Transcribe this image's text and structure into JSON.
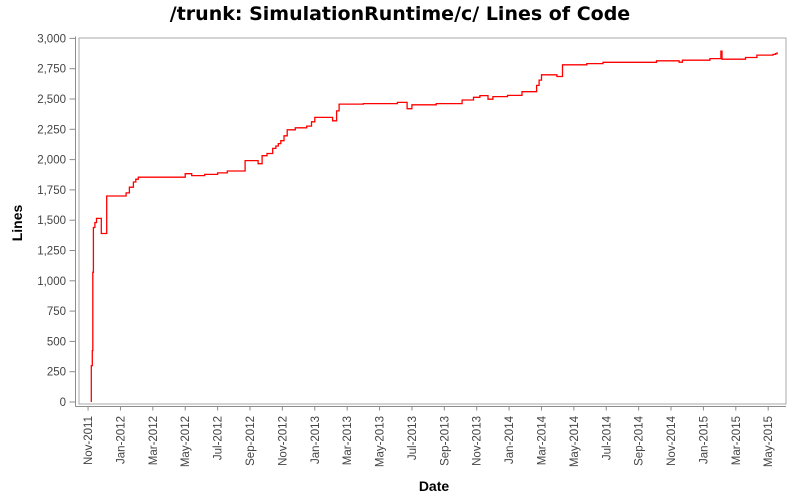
{
  "chart_data": {
    "type": "line",
    "title": "/trunk: SimulationRuntime/c/ Lines of Code",
    "xlabel": "Date",
    "ylabel": "Lines",
    "legend": "none",
    "grid": false,
    "background_color": "#ffffff",
    "line_color": "#ff0000",
    "border_color": "#a8a8a8",
    "axis_color": "#8c8c8c",
    "tick_label_color": "#434343",
    "ylim": [
      0,
      3000
    ],
    "x_unit": "months_since_Nov-2011",
    "xlim_months": [
      -0.56,
      43.1
    ],
    "y_ticks": [
      {
        "value": 0,
        "label": "0"
      },
      {
        "value": 250,
        "label": "250"
      },
      {
        "value": 500,
        "label": "500"
      },
      {
        "value": 750,
        "label": "750"
      },
      {
        "value": 1000,
        "label": "1,000"
      },
      {
        "value": 1250,
        "label": "1,250"
      },
      {
        "value": 1500,
        "label": "1,500"
      },
      {
        "value": 1750,
        "label": "1,750"
      },
      {
        "value": 2000,
        "label": "2,000"
      },
      {
        "value": 2250,
        "label": "2,250"
      },
      {
        "value": 2500,
        "label": "2,500"
      },
      {
        "value": 2750,
        "label": "2,750"
      },
      {
        "value": 3000,
        "label": "3,000"
      }
    ],
    "x_ticks": [
      {
        "m": 0,
        "label": "Nov-2011"
      },
      {
        "m": 2,
        "label": "Jan-2012"
      },
      {
        "m": 4,
        "label": "Mar-2012"
      },
      {
        "m": 6,
        "label": "May-2012"
      },
      {
        "m": 8,
        "label": "Jul-2012"
      },
      {
        "m": 10,
        "label": "Sep-2012"
      },
      {
        "m": 12,
        "label": "Nov-2012"
      },
      {
        "m": 14,
        "label": "Jan-2013"
      },
      {
        "m": 16,
        "label": "Mar-2013"
      },
      {
        "m": 18,
        "label": "May-2013"
      },
      {
        "m": 20,
        "label": "Jul-2013"
      },
      {
        "m": 22,
        "label": "Sep-2013"
      },
      {
        "m": 24,
        "label": "Nov-2013"
      },
      {
        "m": 26,
        "label": "Jan-2014"
      },
      {
        "m": 28,
        "label": "Mar-2014"
      },
      {
        "m": 30,
        "label": "May-2014"
      },
      {
        "m": 32,
        "label": "Jul-2014"
      },
      {
        "m": 34,
        "label": "Sep-2014"
      },
      {
        "m": 36,
        "label": "Nov-2014"
      },
      {
        "m": 38,
        "label": "Jan-2015"
      },
      {
        "m": 40,
        "label": "Mar-2015"
      },
      {
        "m": 42,
        "label": "May-2015"
      }
    ],
    "series": [
      {
        "name": "lines_of_code",
        "color": "#ff0000",
        "interpolation": "step-after",
        "points": [
          [
            0.2,
            0
          ],
          [
            0.2,
            300
          ],
          [
            0.26,
            424
          ],
          [
            0.29,
            1070
          ],
          [
            0.33,
            1440
          ],
          [
            0.42,
            1480
          ],
          [
            0.52,
            1515
          ],
          [
            0.82,
            1390
          ],
          [
            1.15,
            1700
          ],
          [
            2.35,
            1725
          ],
          [
            2.55,
            1772
          ],
          [
            2.8,
            1815
          ],
          [
            2.95,
            1838
          ],
          [
            3.1,
            1855
          ],
          [
            6.0,
            1884
          ],
          [
            6.4,
            1868
          ],
          [
            7.2,
            1878
          ],
          [
            8.0,
            1890
          ],
          [
            8.6,
            1906
          ],
          [
            9.7,
            1992
          ],
          [
            10.5,
            1966
          ],
          [
            10.75,
            2032
          ],
          [
            11.05,
            2050
          ],
          [
            11.4,
            2092
          ],
          [
            11.6,
            2112
          ],
          [
            11.75,
            2132
          ],
          [
            11.9,
            2156
          ],
          [
            12.1,
            2196
          ],
          [
            12.3,
            2246
          ],
          [
            12.8,
            2262
          ],
          [
            13.5,
            2276
          ],
          [
            13.8,
            2312
          ],
          [
            14.0,
            2348
          ],
          [
            15.1,
            2320
          ],
          [
            15.35,
            2402
          ],
          [
            15.5,
            2458
          ],
          [
            17.0,
            2462
          ],
          [
            19.1,
            2472
          ],
          [
            19.7,
            2420
          ],
          [
            20.0,
            2452
          ],
          [
            21.5,
            2462
          ],
          [
            23.1,
            2492
          ],
          [
            23.8,
            2514
          ],
          [
            24.2,
            2528
          ],
          [
            24.7,
            2498
          ],
          [
            25.0,
            2520
          ],
          [
            25.9,
            2530
          ],
          [
            26.8,
            2560
          ],
          [
            27.7,
            2612
          ],
          [
            27.85,
            2656
          ],
          [
            28.0,
            2700
          ],
          [
            28.95,
            2686
          ],
          [
            29.3,
            2782
          ],
          [
            30.8,
            2792
          ],
          [
            31.8,
            2803
          ],
          [
            35.1,
            2815
          ],
          [
            36.5,
            2804
          ],
          [
            36.7,
            2820
          ],
          [
            38.4,
            2833
          ],
          [
            39.05,
            2833
          ],
          [
            39.08,
            2895
          ],
          [
            39.15,
            2828
          ],
          [
            40.6,
            2842
          ],
          [
            41.3,
            2862
          ],
          [
            42.3,
            2868
          ],
          [
            42.45,
            2874
          ],
          [
            42.55,
            2886
          ]
        ]
      }
    ]
  }
}
